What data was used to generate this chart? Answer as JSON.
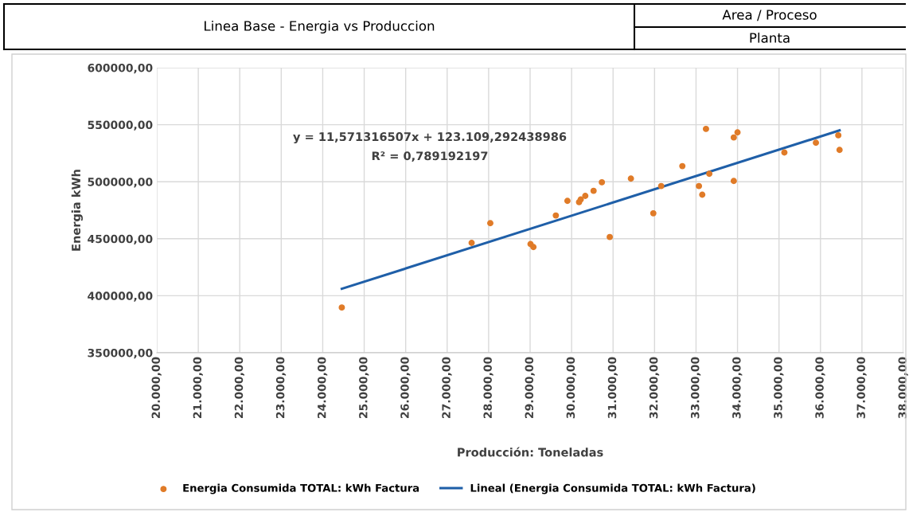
{
  "chart_data": {
    "type": "scatter",
    "title": "Linea Base - Energia vs Produccion",
    "xlabel": "Producción: Toneladas",
    "ylabel": "Energia kWh",
    "annotations": [
      "Area / Proceso",
      "Planta",
      "y = 11,571316507x + 123.109,292438986",
      "R² = 0,789192197"
    ],
    "xlim": [
      20000,
      38000
    ],
    "xticks": [
      {
        "value": 20000,
        "label": "20.000,00"
      },
      {
        "value": 21000,
        "label": "21.000,00"
      },
      {
        "value": 22000,
        "label": "22.000,00"
      },
      {
        "value": 23000,
        "label": "23.000,00"
      },
      {
        "value": 24000,
        "label": "24.000,00"
      },
      {
        "value": 25000,
        "label": "25.000,00"
      },
      {
        "value": 26000,
        "label": "26.000,00"
      },
      {
        "value": 27000,
        "label": "27.000,00"
      },
      {
        "value": 28000,
        "label": "28.000,00"
      },
      {
        "value": 29000,
        "label": "29.000,00"
      },
      {
        "value": 30000,
        "label": "30.000,00"
      },
      {
        "value": 31000,
        "label": "31.000,00"
      },
      {
        "value": 32000,
        "label": "32.000,00"
      },
      {
        "value": 33000,
        "label": "33.000,00"
      },
      {
        "value": 34000,
        "label": "34.000,00"
      },
      {
        "value": 35000,
        "label": "35.000,00"
      },
      {
        "value": 36000,
        "label": "36.000,00"
      },
      {
        "value": 37000,
        "label": "37.000,00"
      },
      {
        "value": 38000,
        "label": "38.000,00"
      }
    ],
    "ylim": [
      350000,
      600000
    ],
    "yticks": [
      {
        "value": 350000,
        "label": "350000,00"
      },
      {
        "value": 400000,
        "label": "400000,00"
      },
      {
        "value": 450000,
        "label": "450000,00"
      },
      {
        "value": 500000,
        "label": "500000,00"
      },
      {
        "value": 550000,
        "label": "550000,00"
      },
      {
        "value": 600000,
        "label": "600000,00"
      }
    ],
    "grid": true,
    "legend": "bottom",
    "series": [
      {
        "name": "Energia Consumida TOTAL: kWh Factura",
        "marker": "circle",
        "color": "#e07b28",
        "x": [
          24460,
          27590,
          28040,
          29010,
          29080,
          29620,
          29900,
          30180,
          30220,
          30330,
          30530,
          30730,
          30920,
          31430,
          31970,
          32160,
          32670,
          33070,
          33150,
          33240,
          33320,
          33910,
          34000,
          33910,
          35130,
          35890,
          36430,
          36460
        ],
        "values": [
          389700,
          446400,
          463700,
          445300,
          442700,
          470400,
          483200,
          482100,
          484400,
          487600,
          492000,
          499500,
          451500,
          502800,
          472300,
          496200,
          513700,
          496200,
          488600,
          546300,
          507000,
          538800,
          543300,
          500700,
          525600,
          534200,
          540700,
          527900
        ]
      },
      {
        "name": "Lineal (Energia Consumida TOTAL: kWh Factura)",
        "type": "line",
        "color": "#1f5fa8",
        "line_style": "solid",
        "marker": "none",
        "x": [
          24460,
          36460
        ],
        "values": [
          406100,
          545000
        ]
      }
    ]
  }
}
